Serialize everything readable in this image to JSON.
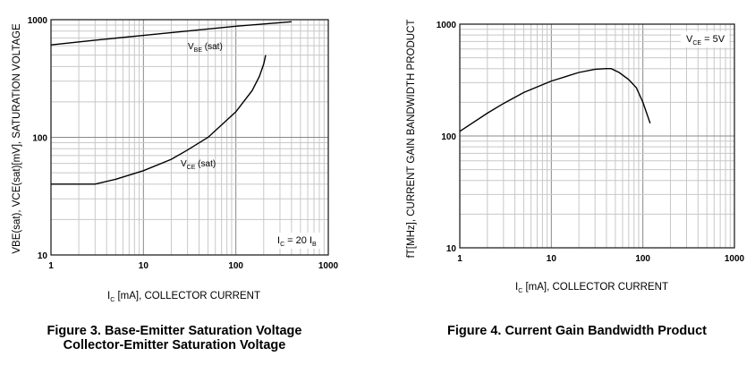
{
  "chart_data": [
    {
      "type": "line",
      "xscale": "log",
      "yscale": "log",
      "xlim": [
        1,
        1000
      ],
      "ylim": [
        10,
        1000
      ],
      "grid": true,
      "xticks": [
        "1",
        "10",
        "100",
        "1000"
      ],
      "yticks": [
        "10",
        "100",
        "1000"
      ],
      "xlabel": "I_C [mA], COLLECTOR CURRENT",
      "xlabel_main": "I",
      "xlabel_sub": "C",
      "xlabel_rest": " [mA], COLLECTOR CURRENT",
      "ylabel": "V_BE(sat), V_CE(sat)[mV], SATURATION VOLTAGE",
      "annotation": {
        "main": "I",
        "sub": "C",
        "mid": " = 20 I",
        "sub2": "B"
      },
      "series": [
        {
          "name": "V_BE (sat)",
          "label_main": "V",
          "label_sub": "BE",
          "label_rest": " (sat)",
          "x": [
            1,
            3,
            10,
            30,
            100,
            200,
            400
          ],
          "y": [
            610,
            670,
            735,
            800,
            880,
            920,
            960
          ]
        },
        {
          "name": "V_CE (sat)",
          "label_main": "V",
          "label_sub": "CE",
          "label_rest": " (sat)",
          "x": [
            1,
            2,
            3,
            5,
            10,
            20,
            30,
            50,
            100,
            150,
            180,
            200,
            210
          ],
          "y": [
            40,
            40,
            40,
            44,
            52,
            65,
            78,
            100,
            165,
            250,
            330,
            420,
            500
          ]
        }
      ],
      "caption": [
        "Figure 3. Base-Emitter Saturation Voltage",
        "Collector-Emitter Saturation Voltage"
      ]
    },
    {
      "type": "line",
      "xscale": "log",
      "yscale": "log",
      "xlim": [
        1,
        1000
      ],
      "ylim": [
        10,
        1000
      ],
      "grid": true,
      "xticks": [
        "1",
        "10",
        "100",
        "1000"
      ],
      "yticks": [
        "10",
        "100",
        "1000"
      ],
      "xlabel": "I_C [mA], COLLECTOR CURRENT",
      "xlabel_main": "I",
      "xlabel_sub": "C",
      "xlabel_rest": " [mA], COLLECTOR CURRENT",
      "ylabel": "f_T[MHz], CURRENT GAIN BANDWIDTH PRODUCT",
      "annotation": {
        "main": "V",
        "sub": "CE",
        "mid": " = 5V",
        "sub2": ""
      },
      "series": [
        {
          "x": [
            1,
            2,
            3,
            5,
            10,
            20,
            30,
            40,
            45,
            55,
            70,
            85,
            100,
            110,
            120
          ],
          "y": [
            110,
            160,
            195,
            245,
            310,
            370,
            395,
            400,
            400,
            370,
            320,
            270,
            200,
            160,
            130
          ]
        }
      ],
      "caption": [
        "Figure 4. Current Gain Bandwidth Product"
      ]
    }
  ]
}
